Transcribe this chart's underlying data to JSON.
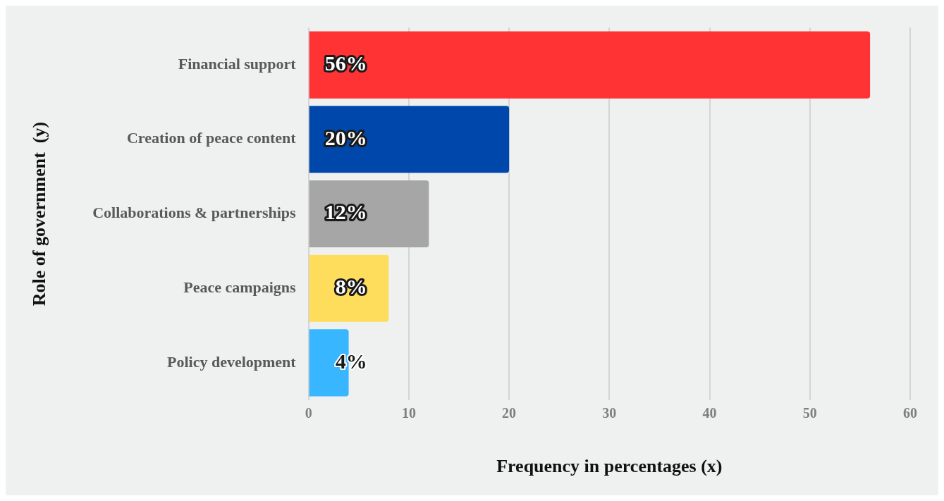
{
  "chart_data": {
    "type": "bar",
    "orientation": "horizontal",
    "xlabel": "Frequency in percentages (x)",
    "ylabel": "Role of government  (y)",
    "categories": [
      "Financial support",
      "Creation of peace content",
      "Collaborations & partnerships",
      "Peace campaigns",
      "Policy development"
    ],
    "values": [
      56,
      20,
      12,
      8,
      4
    ],
    "colors": [
      "#ff3333",
      "#0047ab",
      "#a6a6a6",
      "#ffdd5c",
      "#38b6ff"
    ],
    "value_labels": [
      "56%",
      "20%",
      "12%",
      "8%",
      "4%"
    ],
    "xlim": [
      0,
      60
    ],
    "xticks": [
      0,
      10,
      20,
      30,
      40,
      50,
      60
    ],
    "grid": "x",
    "legend": false
  }
}
